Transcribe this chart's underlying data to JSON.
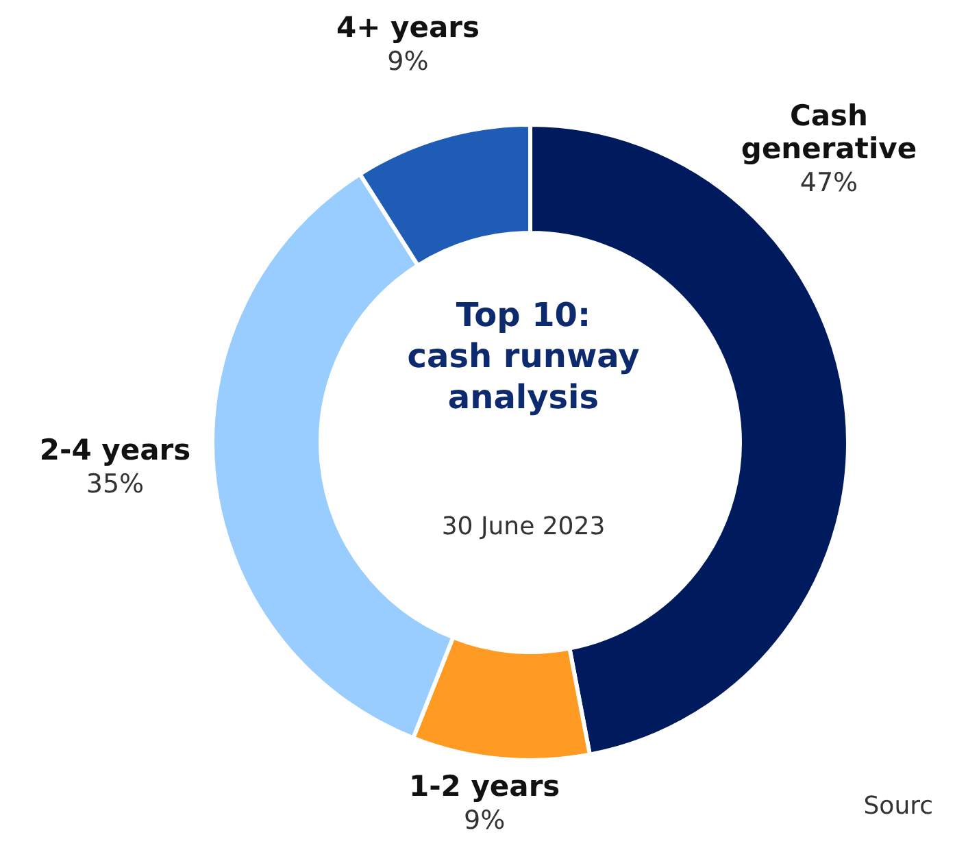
{
  "chart_data": {
    "type": "donut",
    "title": "Top 10:\ncash runway\nanalysis",
    "subtitle": "30 June 2023",
    "categories": [
      "Cash generative",
      "1-2 years",
      "2-4 years",
      "4+ years"
    ],
    "values": [
      47,
      9,
      35,
      9
    ],
    "value_labels": [
      "47%",
      "9%",
      "35%",
      "9%"
    ],
    "colors": [
      "#001a5e",
      "#ff9a22",
      "#99ccff",
      "#1f5cb5"
    ],
    "annotations": [
      "Sourc"
    ]
  }
}
